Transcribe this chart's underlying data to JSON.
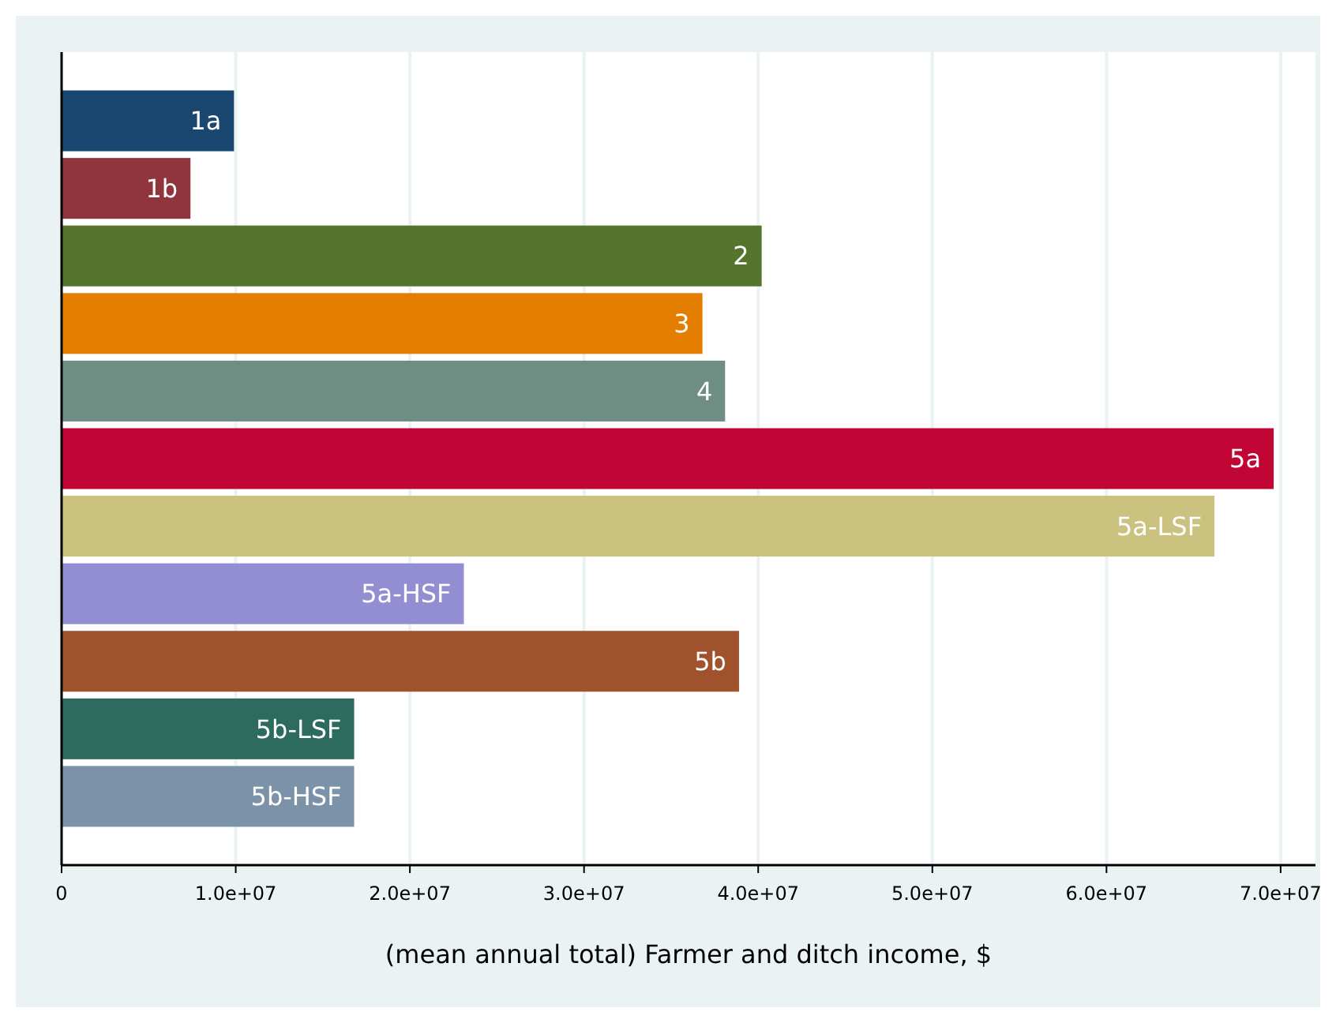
{
  "chart_data": {
    "type": "bar",
    "orientation": "horizontal",
    "xlabel": "(mean annual total) Farmer and ditch income, $",
    "categories": [
      "1a",
      "1b",
      "2",
      "3",
      "4",
      "5a",
      "5a-LSF",
      "5a-HSF",
      "5b",
      "5b-LSF",
      "5b-HSF"
    ],
    "values": [
      9900000,
      7400000,
      40200000,
      36800000,
      38100000,
      69600000,
      66200000,
      23100000,
      38900000,
      16800000,
      16800000
    ],
    "colors": [
      "#1a476f",
      "#90353b",
      "#55752f",
      "#e37e00",
      "#6e8e84",
      "#c10534",
      "#cac27e",
      "#938dd2",
      "#a0522d",
      "#2d6b5f",
      "#7b92a8"
    ],
    "xlim": [
      0,
      72000000
    ],
    "xticks": [
      0,
      {
        "value": 10000000,
        "label": "1.0e+07"
      },
      {
        "value": 20000000,
        "label": "2.0e+07"
      },
      {
        "value": 30000000,
        "label": "3.0e+07"
      },
      {
        "value": 40000000,
        "label": "4.0e+07"
      },
      {
        "value": 50000000,
        "label": "5.0e+07"
      },
      {
        "value": 60000000,
        "label": "6.0e+07"
      },
      {
        "value": 70000000,
        "label": "7.0e+07"
      }
    ],
    "grid": "x",
    "tick_labels": "x"
  }
}
